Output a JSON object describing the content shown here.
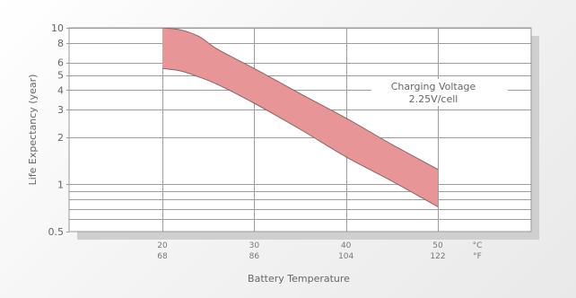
{
  "chart_data": {
    "type": "area",
    "xlabel": "Battery Temperature",
    "ylabel": "Life Expectancy (year)",
    "y_scale": "log",
    "ylim": [
      0.5,
      10
    ],
    "xlim": [
      10,
      50
    ],
    "y_ticks": [
      {
        "value": 10,
        "label": "10"
      },
      {
        "value": 8,
        "label": "8"
      },
      {
        "value": 6,
        "label": "6"
      },
      {
        "value": 5,
        "label": "5"
      },
      {
        "value": 4,
        "label": "4"
      },
      {
        "value": 3,
        "label": "3"
      },
      {
        "value": 2,
        "label": "2"
      },
      {
        "value": 1,
        "label": "1"
      },
      {
        "value": 0.5,
        "label": "0.5"
      }
    ],
    "y_minor_gridlines": [
      0.9,
      0.8,
      0.7,
      0.6
    ],
    "x_ticks": [
      {
        "c": 20,
        "celsius": "20",
        "fahrenheit": "68"
      },
      {
        "c": 30,
        "celsius": "30",
        "fahrenheit": "86"
      },
      {
        "c": 40,
        "celsius": "40",
        "fahrenheit": "104"
      },
      {
        "c": 50,
        "celsius": "50",
        "fahrenheit": "122"
      }
    ],
    "x_units": {
      "celsius": "°C",
      "fahrenheit": "°F"
    },
    "grid": true,
    "band_color": "#e79596",
    "band_stroke": "#8a6464",
    "upper": [
      {
        "x": 20,
        "y": 10
      },
      {
        "x": 22,
        "y": 9.7
      },
      {
        "x": 24,
        "y": 8.8
      },
      {
        "x": 26,
        "y": 7.3
      },
      {
        "x": 30,
        "y": 5.5
      },
      {
        "x": 35,
        "y": 3.8
      },
      {
        "x": 40,
        "y": 2.65
      },
      {
        "x": 45,
        "y": 1.8
      },
      {
        "x": 50,
        "y": 1.25
      }
    ],
    "lower": [
      {
        "x": 20,
        "y": 5.5
      },
      {
        "x": 22,
        "y": 5.3
      },
      {
        "x": 24,
        "y": 4.85
      },
      {
        "x": 26,
        "y": 4.35
      },
      {
        "x": 30,
        "y": 3.3
      },
      {
        "x": 35,
        "y": 2.25
      },
      {
        "x": 40,
        "y": 1.5
      },
      {
        "x": 45,
        "y": 1.05
      },
      {
        "x": 50,
        "y": 0.72
      }
    ],
    "annotation": [
      "Charging Voltage",
      "2.25V/cell"
    ]
  }
}
